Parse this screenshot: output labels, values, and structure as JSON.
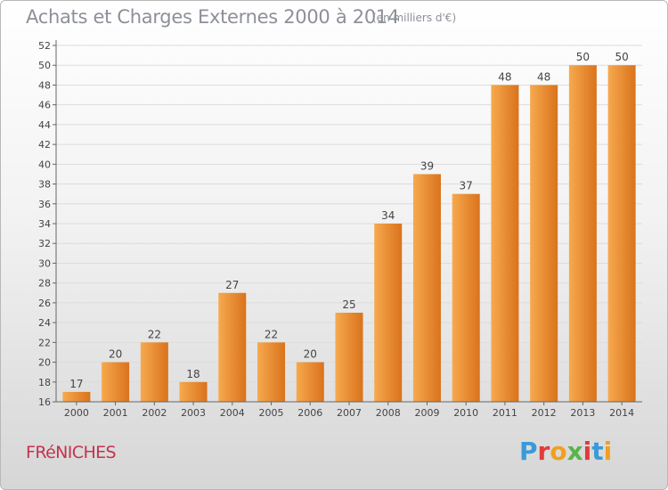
{
  "header": {
    "title": "Achats et Charges Externes 2000 à 2014",
    "unit": "(en milliers d'€)"
  },
  "commune": "FRéNICHES",
  "brand": {
    "letters": [
      "P",
      "r",
      "o",
      "x",
      "i",
      "t",
      "i"
    ],
    "colors": [
      "#3a9ad9",
      "#e23a3a",
      "#f0a020",
      "#58b548",
      "#e23a3a",
      "#3a9ad9",
      "#f0a020"
    ]
  },
  "colors": {
    "bar_light": "#f7a94e",
    "bar_dark": "#d9731c",
    "grid": "#dcdcdc",
    "axis": "#666666",
    "text": "#444444"
  },
  "chart_data": {
    "type": "bar",
    "title": "Achats et Charges Externes 2000 à 2014",
    "subtitle": "(en milliers d'€)",
    "xlabel": "",
    "ylabel": "",
    "categories": [
      "2000",
      "2001",
      "2002",
      "2003",
      "2004",
      "2005",
      "2006",
      "2007",
      "2008",
      "2009",
      "2010",
      "2011",
      "2012",
      "2013",
      "2014"
    ],
    "values": [
      17,
      20,
      22,
      18,
      27,
      22,
      20,
      25,
      34,
      39,
      37,
      48,
      48,
      50,
      50
    ],
    "data_labels": [
      "17",
      "20",
      "22",
      "18",
      "27",
      "22",
      "20",
      "25",
      "34",
      "39",
      "37",
      "48",
      "48",
      "50",
      "50"
    ],
    "ylim": [
      16,
      52
    ],
    "yticks": [
      "16",
      "18",
      "20",
      "22",
      "24",
      "26",
      "28",
      "30",
      "32",
      "34",
      "36",
      "38",
      "40",
      "42",
      "44",
      "46",
      "48",
      "50",
      "52"
    ],
    "grid": true,
    "legend": "none"
  }
}
